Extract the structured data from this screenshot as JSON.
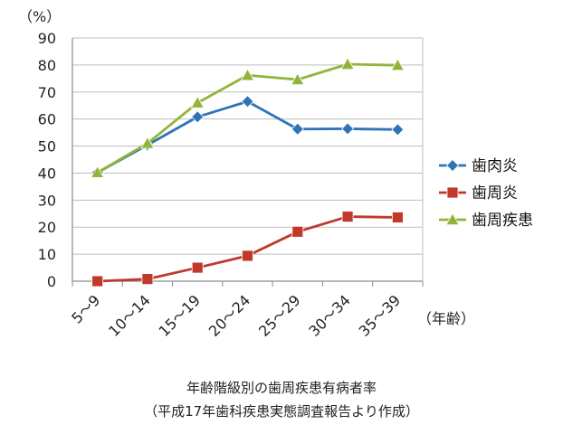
{
  "chart_data": {
    "type": "line",
    "categories": [
      "5～9",
      "10～14",
      "15～19",
      "20～24",
      "25～29",
      "30～34",
      "35～39"
    ],
    "series": [
      {
        "name": "歯肉炎",
        "values": [
          40.2,
          50.4,
          60.8,
          66.5,
          56.3,
          56.4,
          56.1
        ],
        "color": "#2E75B6",
        "marker": "diamond"
      },
      {
        "name": "歯周炎",
        "values": [
          0,
          0.8,
          5.0,
          9.4,
          18.3,
          23.9,
          23.6
        ],
        "color": "#C0392B",
        "marker": "square"
      },
      {
        "name": "歯周疾患",
        "values": [
          40.2,
          51.0,
          66.0,
          76.2,
          74.6,
          80.3,
          79.9
        ],
        "color": "#92B539",
        "marker": "triangle"
      }
    ],
    "yunit": "（%）",
    "xunit": "（年齢）",
    "ylim": [
      0,
      90
    ],
    "yticks": [
      "0",
      "10",
      "20",
      "30",
      "40",
      "50",
      "60",
      "70",
      "80",
      "90"
    ],
    "grid": true,
    "legend_position": "right",
    "caption": [
      "年齢階級別の歯周疾患有病者率",
      "（平成17年歯科疾患実態調査報告より作成）"
    ]
  }
}
